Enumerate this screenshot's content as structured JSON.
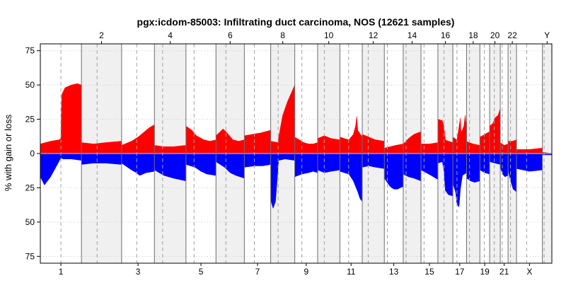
{
  "chart_data": {
    "type": "area",
    "title": "pgx:icdom-85003: Infiltrating duct carcinoma, NOS (12621 samples)",
    "ylabel": "% with gain or loss",
    "xlabel": "",
    "ylim": [
      -80,
      80
    ],
    "y_ticks": [
      75,
      50,
      25,
      0,
      25,
      50,
      75
    ],
    "grid": "dotted",
    "colors": {
      "gain": "#ff0000",
      "loss": "#0000ff",
      "shade": "#f0f0f0",
      "centromere": "#a0a0a0"
    },
    "series": [
      {
        "name": "gain",
        "color": "#ff0000"
      },
      {
        "name": "loss",
        "color": "#0000ff"
      }
    ],
    "chromosomes": [
      {
        "name": "1",
        "length": 248,
        "centromere": 0.5,
        "shaded": false,
        "label_pos": "bottom"
      },
      {
        "name": "2",
        "length": 242,
        "centromere": 0.39,
        "shaded": true,
        "label_pos": "top"
      },
      {
        "name": "3",
        "length": 198,
        "centromere": 0.46,
        "shaded": false,
        "label_pos": "bottom"
      },
      {
        "name": "4",
        "length": 190,
        "centromere": 0.26,
        "shaded": true,
        "label_pos": "top"
      },
      {
        "name": "5",
        "length": 181,
        "centromere": 0.27,
        "shaded": false,
        "label_pos": "bottom"
      },
      {
        "name": "6",
        "length": 171,
        "centromere": 0.35,
        "shaded": true,
        "label_pos": "top"
      },
      {
        "name": "7",
        "length": 159,
        "centromere": 0.38,
        "shaded": false,
        "label_pos": "bottom"
      },
      {
        "name": "8",
        "length": 145,
        "centromere": 0.31,
        "shaded": true,
        "label_pos": "top"
      },
      {
        "name": "9",
        "length": 138,
        "centromere": 0.31,
        "shaded": false,
        "label_pos": "bottom"
      },
      {
        "name": "10",
        "length": 134,
        "centromere": 0.3,
        "shaded": true,
        "label_pos": "top"
      },
      {
        "name": "11",
        "length": 135,
        "centromere": 0.39,
        "shaded": false,
        "label_pos": "bottom"
      },
      {
        "name": "12",
        "length": 133,
        "centromere": 0.27,
        "shaded": true,
        "label_pos": "top"
      },
      {
        "name": "13",
        "length": 114,
        "centromere": 0.16,
        "shaded": false,
        "label_pos": "bottom"
      },
      {
        "name": "14",
        "length": 107,
        "centromere": 0.16,
        "shaded": true,
        "label_pos": "top"
      },
      {
        "name": "15",
        "length": 102,
        "centromere": 0.18,
        "shaded": false,
        "label_pos": "bottom"
      },
      {
        "name": "16",
        "length": 90,
        "centromere": 0.41,
        "shaded": true,
        "label_pos": "top"
      },
      {
        "name": "17",
        "length": 83,
        "centromere": 0.3,
        "shaded": false,
        "label_pos": "bottom"
      },
      {
        "name": "18",
        "length": 80,
        "centromere": 0.22,
        "shaded": true,
        "label_pos": "top"
      },
      {
        "name": "19",
        "length": 59,
        "centromere": 0.45,
        "shaded": false,
        "label_pos": "bottom"
      },
      {
        "name": "20",
        "length": 64,
        "centromere": 0.44,
        "shaded": true,
        "label_pos": "top"
      },
      {
        "name": "21",
        "length": 47,
        "centromere": 0.26,
        "shaded": false,
        "label_pos": "bottom"
      },
      {
        "name": "22",
        "length": 51,
        "centromere": 0.29,
        "shaded": true,
        "label_pos": "top"
      },
      {
        "name": "X",
        "length": 156,
        "centromere": 0.39,
        "shaded": false,
        "label_pos": "bottom"
      },
      {
        "name": "Y",
        "length": 57,
        "centromere": 0.18,
        "shaded": true,
        "label_pos": "top"
      }
    ],
    "gain_profile": [
      {
        "chr": "1",
        "points": [
          [
            0,
            7
          ],
          [
            0.25,
            9
          ],
          [
            0.45,
            10
          ],
          [
            0.5,
            11
          ],
          [
            0.52,
            43
          ],
          [
            0.6,
            48
          ],
          [
            0.75,
            50
          ],
          [
            0.9,
            51
          ],
          [
            1,
            50
          ]
        ]
      },
      {
        "chr": "2",
        "points": [
          [
            0,
            8
          ],
          [
            0.3,
            7
          ],
          [
            0.6,
            8
          ],
          [
            1,
            9
          ]
        ]
      },
      {
        "chr": "3",
        "points": [
          [
            0,
            6
          ],
          [
            0.3,
            9
          ],
          [
            0.5,
            12
          ],
          [
            0.7,
            16
          ],
          [
            0.85,
            19
          ],
          [
            1,
            21
          ]
        ]
      },
      {
        "chr": "4",
        "points": [
          [
            0,
            6
          ],
          [
            0.3,
            5
          ],
          [
            0.6,
            5
          ],
          [
            1,
            6
          ]
        ]
      },
      {
        "chr": "5",
        "points": [
          [
            0,
            20
          ],
          [
            0.2,
            17
          ],
          [
            0.35,
            13
          ],
          [
            0.6,
            10
          ],
          [
            0.8,
            9
          ],
          [
            1,
            10
          ]
        ]
      },
      {
        "chr": "6",
        "points": [
          [
            0,
            13
          ],
          [
            0.25,
            18
          ],
          [
            0.35,
            16
          ],
          [
            0.6,
            10
          ],
          [
            0.8,
            9
          ],
          [
            1,
            10
          ]
        ]
      },
      {
        "chr": "7",
        "points": [
          [
            0,
            13
          ],
          [
            0.3,
            14
          ],
          [
            0.6,
            15
          ],
          [
            0.8,
            16
          ],
          [
            1,
            17
          ]
        ]
      },
      {
        "chr": "8",
        "points": [
          [
            0,
            9
          ],
          [
            0.3,
            8
          ],
          [
            0.33,
            12
          ],
          [
            0.5,
            28
          ],
          [
            0.7,
            38
          ],
          [
            0.85,
            44
          ],
          [
            1,
            50
          ]
        ]
      },
      {
        "chr": "9",
        "points": [
          [
            0,
            12
          ],
          [
            0.2,
            10
          ],
          [
            0.4,
            8
          ],
          [
            0.6,
            7
          ],
          [
            0.8,
            7
          ],
          [
            1,
            8
          ]
        ]
      },
      {
        "chr": "10",
        "points": [
          [
            0,
            11
          ],
          [
            0.3,
            13
          ],
          [
            0.6,
            11
          ],
          [
            1,
            10
          ]
        ]
      },
      {
        "chr": "11",
        "points": [
          [
            0,
            12
          ],
          [
            0.4,
            10
          ],
          [
            0.6,
            14
          ],
          [
            0.7,
            20
          ],
          [
            0.75,
            27
          ],
          [
            0.8,
            17
          ],
          [
            1,
            12
          ]
        ]
      },
      {
        "chr": "12",
        "points": [
          [
            0,
            14
          ],
          [
            0.3,
            12
          ],
          [
            0.6,
            10
          ],
          [
            1,
            9
          ]
        ]
      },
      {
        "chr": "13",
        "points": [
          [
            0,
            4
          ],
          [
            0.3,
            5
          ],
          [
            0.6,
            6
          ],
          [
            1,
            7
          ]
        ]
      },
      {
        "chr": "14",
        "points": [
          [
            0,
            7
          ],
          [
            0.3,
            11
          ],
          [
            0.6,
            14
          ],
          [
            1,
            16
          ]
        ]
      },
      {
        "chr": "15",
        "points": [
          [
            0,
            7
          ],
          [
            0.5,
            7
          ],
          [
            1,
            8
          ]
        ]
      },
      {
        "chr": "16",
        "points": [
          [
            0,
            25
          ],
          [
            0.3,
            24
          ],
          [
            0.4,
            20
          ],
          [
            0.5,
            10
          ],
          [
            0.7,
            9
          ],
          [
            1,
            8
          ]
        ]
      },
      {
        "chr": "17",
        "points": [
          [
            0,
            12
          ],
          [
            0.3,
            10
          ],
          [
            0.55,
            26
          ],
          [
            0.6,
            15
          ],
          [
            0.8,
            20
          ],
          [
            0.9,
            28
          ],
          [
            1,
            18
          ]
        ]
      },
      {
        "chr": "18",
        "points": [
          [
            0,
            9
          ],
          [
            0.2,
            8
          ],
          [
            0.5,
            7
          ],
          [
            1,
            6
          ]
        ]
      },
      {
        "chr": "19",
        "points": [
          [
            0,
            12
          ],
          [
            0.5,
            14
          ],
          [
            1,
            16
          ]
        ]
      },
      {
        "chr": "20",
        "points": [
          [
            0,
            20
          ],
          [
            0.3,
            22
          ],
          [
            0.5,
            26
          ],
          [
            0.8,
            28
          ],
          [
            1,
            33
          ]
        ]
      },
      {
        "chr": "21",
        "points": [
          [
            0,
            8
          ],
          [
            0.5,
            6
          ],
          [
            1,
            7
          ]
        ]
      },
      {
        "chr": "22",
        "points": [
          [
            0,
            9
          ],
          [
            0.5,
            9
          ],
          [
            1,
            10
          ]
        ]
      },
      {
        "chr": "X",
        "points": [
          [
            0,
            3
          ],
          [
            0.5,
            3
          ],
          [
            1,
            4
          ]
        ]
      },
      {
        "chr": "Y",
        "points": [
          [
            0,
            1
          ],
          [
            1,
            0
          ]
        ]
      }
    ],
    "loss_profile": [
      {
        "chr": "1",
        "points": [
          [
            0,
            17
          ],
          [
            0.1,
            23
          ],
          [
            0.25,
            17
          ],
          [
            0.45,
            6
          ],
          [
            0.5,
            3
          ],
          [
            0.55,
            4
          ],
          [
            0.75,
            4
          ],
          [
            1,
            5
          ]
        ]
      },
      {
        "chr": "2",
        "points": [
          [
            0,
            8
          ],
          [
            0.3,
            7
          ],
          [
            0.6,
            7
          ],
          [
            1,
            8
          ]
        ]
      },
      {
        "chr": "3",
        "points": [
          [
            0,
            7
          ],
          [
            0.3,
            12
          ],
          [
            0.45,
            14
          ],
          [
            0.55,
            16
          ],
          [
            0.75,
            14
          ],
          [
            1,
            13
          ]
        ]
      },
      {
        "chr": "4",
        "points": [
          [
            0,
            12
          ],
          [
            0.3,
            16
          ],
          [
            0.6,
            18
          ],
          [
            1,
            20
          ]
        ]
      },
      {
        "chr": "5",
        "points": [
          [
            0,
            8
          ],
          [
            0.3,
            10
          ],
          [
            0.5,
            13
          ],
          [
            0.7,
            15
          ],
          [
            1,
            16
          ]
        ]
      },
      {
        "chr": "6",
        "points": [
          [
            0,
            6
          ],
          [
            0.3,
            10
          ],
          [
            0.5,
            14
          ],
          [
            0.7,
            16
          ],
          [
            1,
            18
          ]
        ]
      },
      {
        "chr": "7",
        "points": [
          [
            0,
            10
          ],
          [
            0.4,
            9
          ],
          [
            0.7,
            9
          ],
          [
            1,
            8
          ]
        ]
      },
      {
        "chr": "8",
        "points": [
          [
            0,
            34
          ],
          [
            0.1,
            40
          ],
          [
            0.2,
            35
          ],
          [
            0.3,
            12
          ],
          [
            0.33,
            5
          ],
          [
            0.6,
            4
          ],
          [
            1,
            5
          ]
        ]
      },
      {
        "chr": "9",
        "points": [
          [
            0,
            17
          ],
          [
            0.3,
            15
          ],
          [
            0.6,
            14
          ],
          [
            0.8,
            13
          ],
          [
            1,
            14
          ]
        ]
      },
      {
        "chr": "10",
        "points": [
          [
            0,
            12
          ],
          [
            0.3,
            14
          ],
          [
            0.6,
            13
          ],
          [
            1,
            12
          ]
        ]
      },
      {
        "chr": "11",
        "points": [
          [
            0,
            13
          ],
          [
            0.4,
            15
          ],
          [
            0.6,
            20
          ],
          [
            0.8,
            28
          ],
          [
            0.9,
            33
          ],
          [
            1,
            35
          ]
        ]
      },
      {
        "chr": "12",
        "points": [
          [
            0,
            10
          ],
          [
            0.3,
            9
          ],
          [
            0.6,
            10
          ],
          [
            1,
            11
          ]
        ]
      },
      {
        "chr": "13",
        "points": [
          [
            0,
            18
          ],
          [
            0.3,
            24
          ],
          [
            0.5,
            26
          ],
          [
            0.7,
            26
          ],
          [
            1,
            24
          ]
        ]
      },
      {
        "chr": "14",
        "points": [
          [
            0,
            15
          ],
          [
            0.3,
            17
          ],
          [
            0.6,
            18
          ],
          [
            1,
            20
          ]
        ]
      },
      {
        "chr": "15",
        "points": [
          [
            0,
            12
          ],
          [
            0.3,
            14
          ],
          [
            0.6,
            16
          ],
          [
            1,
            19
          ]
        ]
      },
      {
        "chr": "16",
        "points": [
          [
            0,
            7
          ],
          [
            0.3,
            6
          ],
          [
            0.4,
            12
          ],
          [
            0.5,
            27
          ],
          [
            0.7,
            30
          ],
          [
            1,
            31
          ]
        ]
      },
      {
        "chr": "17",
        "points": [
          [
            0,
            22
          ],
          [
            0.2,
            28
          ],
          [
            0.3,
            37
          ],
          [
            0.45,
            39
          ],
          [
            0.55,
            26
          ],
          [
            0.7,
            16
          ],
          [
            1,
            14
          ]
        ]
      },
      {
        "chr": "18",
        "points": [
          [
            0,
            18
          ],
          [
            0.3,
            20
          ],
          [
            0.6,
            21
          ],
          [
            1,
            20
          ]
        ]
      },
      {
        "chr": "19",
        "points": [
          [
            0,
            12
          ],
          [
            0.5,
            14
          ],
          [
            1,
            15
          ]
        ]
      },
      {
        "chr": "20",
        "points": [
          [
            0,
            6
          ],
          [
            0.5,
            7
          ],
          [
            1,
            8
          ]
        ]
      },
      {
        "chr": "21",
        "points": [
          [
            0,
            10
          ],
          [
            0.3,
            15
          ],
          [
            0.6,
            17
          ],
          [
            1,
            16
          ]
        ]
      },
      {
        "chr": "22",
        "points": [
          [
            0,
            12
          ],
          [
            0.3,
            20
          ],
          [
            0.6,
            26
          ],
          [
            1,
            28
          ]
        ]
      },
      {
        "chr": "X",
        "points": [
          [
            0,
            11
          ],
          [
            0.5,
            13
          ],
          [
            1,
            12
          ]
        ]
      },
      {
        "chr": "Y",
        "points": [
          [
            0,
            1
          ],
          [
            1,
            1
          ]
        ]
      }
    ]
  }
}
